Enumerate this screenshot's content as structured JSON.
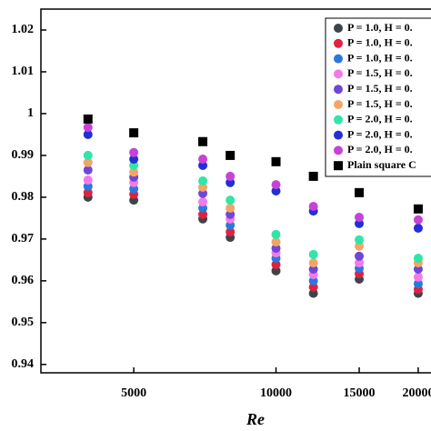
{
  "chart_data": {
    "type": "scatter",
    "x_label": "Re",
    "x": [
      4000,
      5000,
      7000,
      8000,
      10000,
      12000,
      15000,
      20000
    ],
    "xlim": [
      3180,
      22850
    ],
    "xticks": [
      5000,
      10000,
      15000,
      20000
    ],
    "log_x": true,
    "ylim": [
      0.938,
      1.025
    ],
    "yticks": [
      0.94,
      0.95,
      0.96,
      0.97,
      0.98,
      0.99,
      1,
      1.01,
      1.02
    ],
    "legend": "upper right",
    "series": [
      {
        "name": "P = 1.0, H = 0.",
        "color": "#3f4448",
        "marker": "circle",
        "values": [
          0.98,
          0.9793,
          0.9748,
          0.9704,
          0.9624,
          0.957,
          0.9604,
          0.957
        ]
      },
      {
        "name": "P = 1.0, H = 0.",
        "color": "#e2213f",
        "marker": "circle",
        "values": [
          0.9811,
          0.9807,
          0.9759,
          0.9717,
          0.9639,
          0.9585,
          0.9617,
          0.958
        ]
      },
      {
        "name": "P = 1.0, H = 0.",
        "color": "#2b78dc",
        "marker": "circle",
        "values": [
          0.9826,
          0.982,
          0.9774,
          0.9733,
          0.9654,
          0.96,
          0.963,
          0.9593
        ]
      },
      {
        "name": "P = 1.5, H = 0.",
        "color": "#f27ae8",
        "marker": "circle",
        "values": [
          0.9841,
          0.9835,
          0.9789,
          0.9748,
          0.9667,
          0.9615,
          0.9643,
          0.9609
        ]
      },
      {
        "name": "P = 1.5, H = 0.",
        "color": "#7046d6",
        "marker": "circle",
        "values": [
          0.9865,
          0.9848,
          0.9809,
          0.9759,
          0.9678,
          0.9628,
          0.9659,
          0.9628
        ]
      },
      {
        "name": "P = 1.5, H = 0.",
        "color": "#f3a466",
        "marker": "circle",
        "values": [
          0.9883,
          0.986,
          0.9824,
          0.9774,
          0.9693,
          0.9643,
          0.9683,
          0.9643
        ]
      },
      {
        "name": "P = 2.0, H = 0.",
        "color": "#2fe6a6",
        "marker": "circle",
        "values": [
          0.99,
          0.9876,
          0.9839,
          0.9793,
          0.9711,
          0.9663,
          0.9698,
          0.9654
        ]
      },
      {
        "name": "P = 2.0, H = 0.",
        "color": "#2130d6",
        "marker": "circle",
        "values": [
          0.995,
          0.9891,
          0.9876,
          0.9835,
          0.9815,
          0.9767,
          0.9737,
          0.9726
        ]
      },
      {
        "name": "P = 2.0, H = 0.",
        "color": "#c742d8",
        "marker": "circle",
        "values": [
          0.9967,
          0.9907,
          0.9891,
          0.985,
          0.983,
          0.9778,
          0.9752,
          0.9746
        ]
      },
      {
        "name": "Plain square C",
        "color": "#000000",
        "marker": "square",
        "values": [
          0.9987,
          0.9954,
          0.9933,
          0.99,
          0.9885,
          0.985,
          0.9811,
          0.9772
        ]
      }
    ]
  }
}
